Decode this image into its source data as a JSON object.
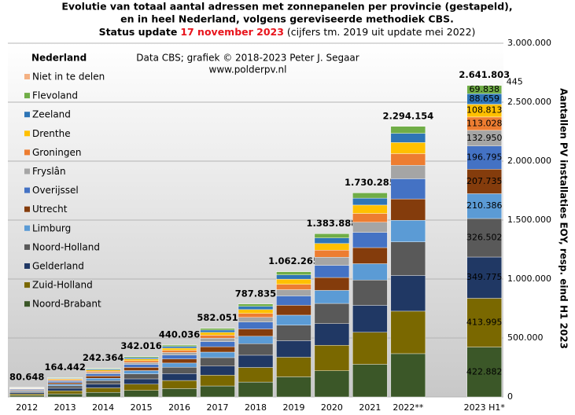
{
  "chart_data": {
    "type": "stacked_bar",
    "title": [
      "Evolutie van totaal aantal adressen met zonnepanelen per provincie (gestapeld),",
      "en in heel Nederland, volgens gereviseerde methodiek CBS."
    ],
    "subtitle": {
      "prefix": "Status update",
      "date": "17 november 2023",
      "suffix": "(cijfers tm. 2019 uit update mei 2022)",
      "date_color": "#e8141c"
    },
    "annotations": [
      "Data CBS; grafiek © 2018-2023 Peter J. Segaar",
      "www.polderpv.nl"
    ],
    "legend_title": "Nederland",
    "y_label": "Aantallen PV installaties EOY, resp. eind H1 2023",
    "categories": [
      "2012",
      "2013",
      "2014",
      "2015",
      "2016",
      "2017",
      "2018",
      "2019",
      "2020",
      "2021",
      "2022**",
      null,
      "2023 H1*"
    ],
    "totals": {
      "values": [
        80648,
        164442,
        242364,
        342016,
        440036,
        582051,
        787835,
        1062265,
        1383888,
        1730285,
        2294154,
        null,
        2641803
      ],
      "value_labels": [
        "80.648",
        "164.442",
        "242.364",
        "342.016",
        "440.036",
        "582.051",
        "787.835",
        "1.062.265",
        "1.383.888",
        "1.730.285",
        "2.294.154",
        null,
        "2.641.803"
      ]
    },
    "series": [
      {
        "name": "Noord-Brabant",
        "color": "#3b5728",
        "values": [
          12900,
          26300,
          38800,
          54700,
          70400,
          93100,
          126100,
          170000,
          221400,
          276800,
          367100,
          null,
          422882
        ],
        "value_labels": [
          null,
          null,
          null,
          null,
          null,
          null,
          null,
          null,
          null,
          null,
          null,
          null,
          "422.882"
        ]
      },
      {
        "name": "Zuid-Holland",
        "color": "#7a6800",
        "values": [
          12700,
          25800,
          38100,
          53700,
          69100,
          91400,
          123700,
          166800,
          217300,
          271700,
          360200,
          null,
          413995
        ],
        "value_labels": [
          null,
          null,
          null,
          null,
          null,
          null,
          null,
          null,
          null,
          null,
          null,
          null,
          "413.995"
        ]
      },
      {
        "name": "Gelderland",
        "color": "#203864",
        "values": [
          10600,
          21700,
          32000,
          45100,
          58100,
          76800,
          104000,
          140200,
          182700,
          228400,
          302800,
          null,
          349775
        ],
        "value_labels": [
          null,
          null,
          null,
          null,
          null,
          null,
          null,
          null,
          null,
          null,
          null,
          null,
          "349.775"
        ]
      },
      {
        "name": "Noord-Holland",
        "color": "#595959",
        "values": [
          10000,
          20400,
          30100,
          42400,
          54600,
          72200,
          97700,
          131700,
          171600,
          214600,
          284500,
          null,
          326502
        ],
        "value_labels": [
          null,
          null,
          null,
          null,
          null,
          null,
          null,
          null,
          null,
          null,
          null,
          null,
          "326.502"
        ]
      },
      {
        "name": "Limburg",
        "color": "#5b9bd5",
        "values": [
          6500,
          13200,
          19400,
          27400,
          35200,
          46600,
          63000,
          85000,
          110700,
          138400,
          183500,
          null,
          210386
        ],
        "value_labels": [
          null,
          null,
          null,
          null,
          null,
          null,
          null,
          null,
          null,
          null,
          null,
          null,
          "210.386"
        ]
      },
      {
        "name": "Utrecht",
        "color": "#843c0c",
        "values": [
          6400,
          13000,
          19100,
          27000,
          34800,
          46000,
          62200,
          83900,
          109300,
          136700,
          181200,
          null,
          207735
        ],
        "value_labels": [
          null,
          null,
          null,
          null,
          null,
          null,
          null,
          null,
          null,
          null,
          null,
          null,
          "207.735"
        ]
      },
      {
        "name": "Overijssel",
        "color": "#4472c4",
        "values": [
          6000,
          12300,
          18100,
          25500,
          32800,
          43400,
          58700,
          79100,
          103100,
          128900,
          170900,
          null,
          196795
        ],
        "value_labels": [
          null,
          null,
          null,
          null,
          null,
          null,
          null,
          null,
          null,
          null,
          null,
          null,
          "196.795"
        ]
      },
      {
        "name": "Fryslân",
        "color": "#a5a5a5",
        "values": [
          4000,
          8200,
          12100,
          17100,
          22000,
          29100,
          39400,
          53100,
          69200,
          86500,
          114700,
          null,
          132950
        ],
        "value_labels": [
          null,
          null,
          null,
          null,
          null,
          null,
          null,
          null,
          null,
          null,
          null,
          null,
          "132.950"
        ]
      },
      {
        "name": "Groningen",
        "color": "#ed7d31",
        "values": [
          3500,
          7100,
          10400,
          14700,
          18900,
          25000,
          33900,
          45700,
          59500,
          74400,
          98600,
          null,
          113028
        ],
        "value_labels": [
          null,
          null,
          null,
          null,
          null,
          null,
          null,
          null,
          null,
          null,
          null,
          null,
          "113.028"
        ]
      },
      {
        "name": "Drenthe",
        "color": "#ffc000",
        "values": [
          3300,
          6700,
          9900,
          14000,
          18000,
          23900,
          32300,
          43600,
          56700,
          70900,
          94100,
          null,
          108813
        ],
        "value_labels": [
          null,
          null,
          null,
          null,
          null,
          null,
          null,
          null,
          null,
          null,
          null,
          null,
          "108.813"
        ]
      },
      {
        "name": "Zeeland",
        "color": "#2e75b6",
        "values": [
          2700,
          5600,
          8200,
          11600,
          15000,
          19800,
          26800,
          36100,
          47100,
          58800,
          78000,
          null,
          88659
        ],
        "value_labels": [
          null,
          null,
          null,
          null,
          null,
          null,
          null,
          null,
          null,
          null,
          null,
          null,
          "88.659"
        ]
      },
      {
        "name": "Flevoland",
        "color": "#70ad47",
        "values": [
          2100,
          4300,
          6300,
          8900,
          11400,
          15100,
          20500,
          27600,
          36000,
          45000,
          59600,
          null,
          69838
        ],
        "value_labels": [
          null,
          null,
          null,
          null,
          null,
          null,
          null,
          null,
          null,
          null,
          null,
          null,
          "69.838"
        ]
      },
      {
        "name": "Niet in te delen",
        "color": "#f4b183",
        "values": [
          400,
          400,
          400,
          400,
          400,
          400,
          400,
          400,
          400,
          400,
          400,
          null,
          445
        ]
      }
    ],
    "ylim": [
      0,
      3000000
    ],
    "yticks": [
      0,
      {
        "value": 500000,
        "label": "500.000"
      },
      {
        "value": 1000000,
        "label": "1.000.000"
      },
      {
        "value": 1500000,
        "label": "1.500.000"
      },
      {
        "value": 2000000,
        "label": "2.000.000"
      },
      {
        "value": 2500000,
        "label": "2.500.000"
      },
      {
        "value": 3000000,
        "label": "3.000.000"
      }
    ],
    "grid": true
  }
}
